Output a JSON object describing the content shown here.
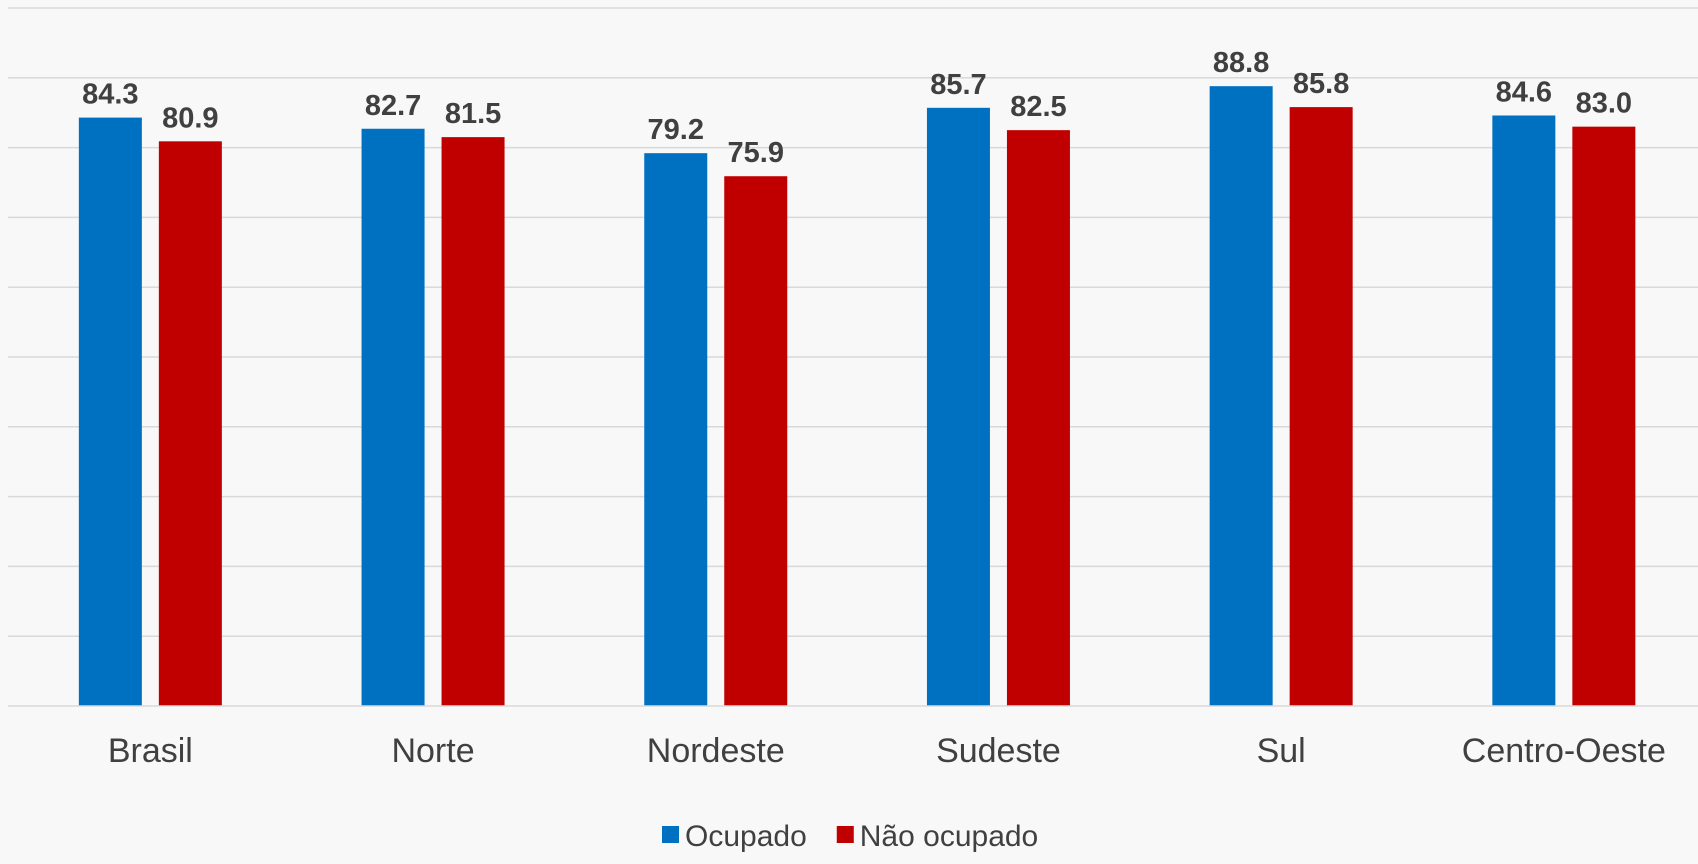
{
  "chart_data": {
    "type": "bar",
    "categories": [
      "Brasil",
      "Norte",
      "Nordeste",
      "Sudeste",
      "Sul",
      "Centro-Oeste"
    ],
    "series": [
      {
        "name": "Ocupado",
        "color": "#0070c0",
        "values": [
          84.3,
          82.7,
          79.2,
          85.7,
          88.8,
          84.6
        ]
      },
      {
        "name": "Não ocupado",
        "color": "#c00000",
        "values": [
          80.9,
          81.5,
          75.9,
          82.5,
          85.8,
          83.0
        ]
      }
    ],
    "ylim": [
      0,
      100
    ],
    "ytick_step": 10,
    "grid": true,
    "legend": "bottom-center",
    "data_labels": true
  }
}
